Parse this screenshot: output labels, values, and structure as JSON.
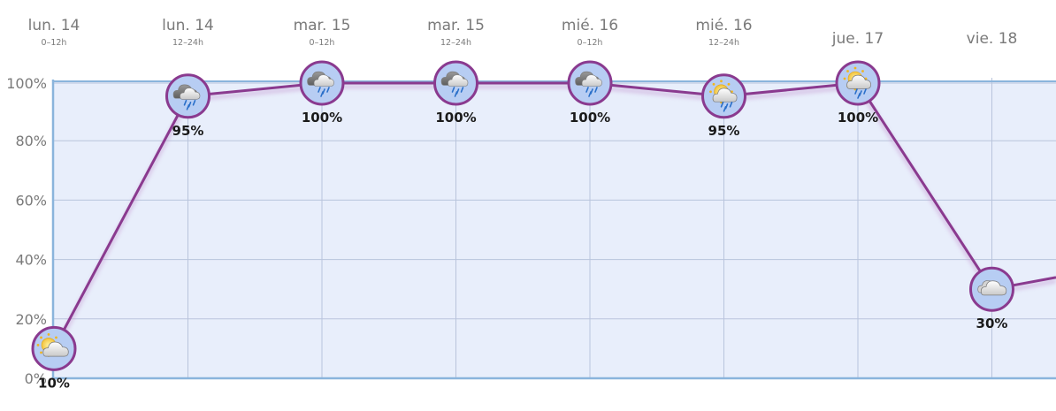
{
  "chart_data": {
    "type": "line",
    "categories": [
      {
        "day": "lun. 14",
        "period": "0–12h"
      },
      {
        "day": "lun. 14",
        "period": "12–24h"
      },
      {
        "day": "mar. 15",
        "period": "0–12h"
      },
      {
        "day": "mar. 15",
        "period": "12–24h"
      },
      {
        "day": "mié. 16",
        "period": "0–12h"
      },
      {
        "day": "mié. 16",
        "period": "12–24h"
      },
      {
        "day": "jue. 17",
        "period": ""
      },
      {
        "day": "vie. 18",
        "period": ""
      }
    ],
    "series": [
      {
        "values": [
          10,
          95,
          100,
          100,
          100,
          95,
          100,
          30
        ],
        "labels": [
          "10%",
          "95%",
          "100%",
          "100%",
          "100%",
          "95%",
          "100%",
          "30%"
        ],
        "icons": [
          "sun-cloud-icon",
          "cloud-rain-icon",
          "cloud-rain-icon",
          "cloud-rain-icon",
          "cloud-rain-icon",
          "sun-cloud-rain-icon",
          "sun-cloud-rain-icon",
          "cloud-icon"
        ],
        "continues_value": 34
      }
    ],
    "y_ticks": [
      "0%",
      "20%",
      "40%",
      "60%",
      "80%",
      "100%"
    ],
    "y_tick_values": [
      0,
      20,
      40,
      60,
      80,
      100
    ],
    "ylim": [
      0,
      100
    ],
    "grid": true,
    "colors": {
      "line": "#8a3a8f",
      "plot_bg": "#e8eefb",
      "grid": "#b9c4dc",
      "axis": "#8ab4dc"
    }
  }
}
